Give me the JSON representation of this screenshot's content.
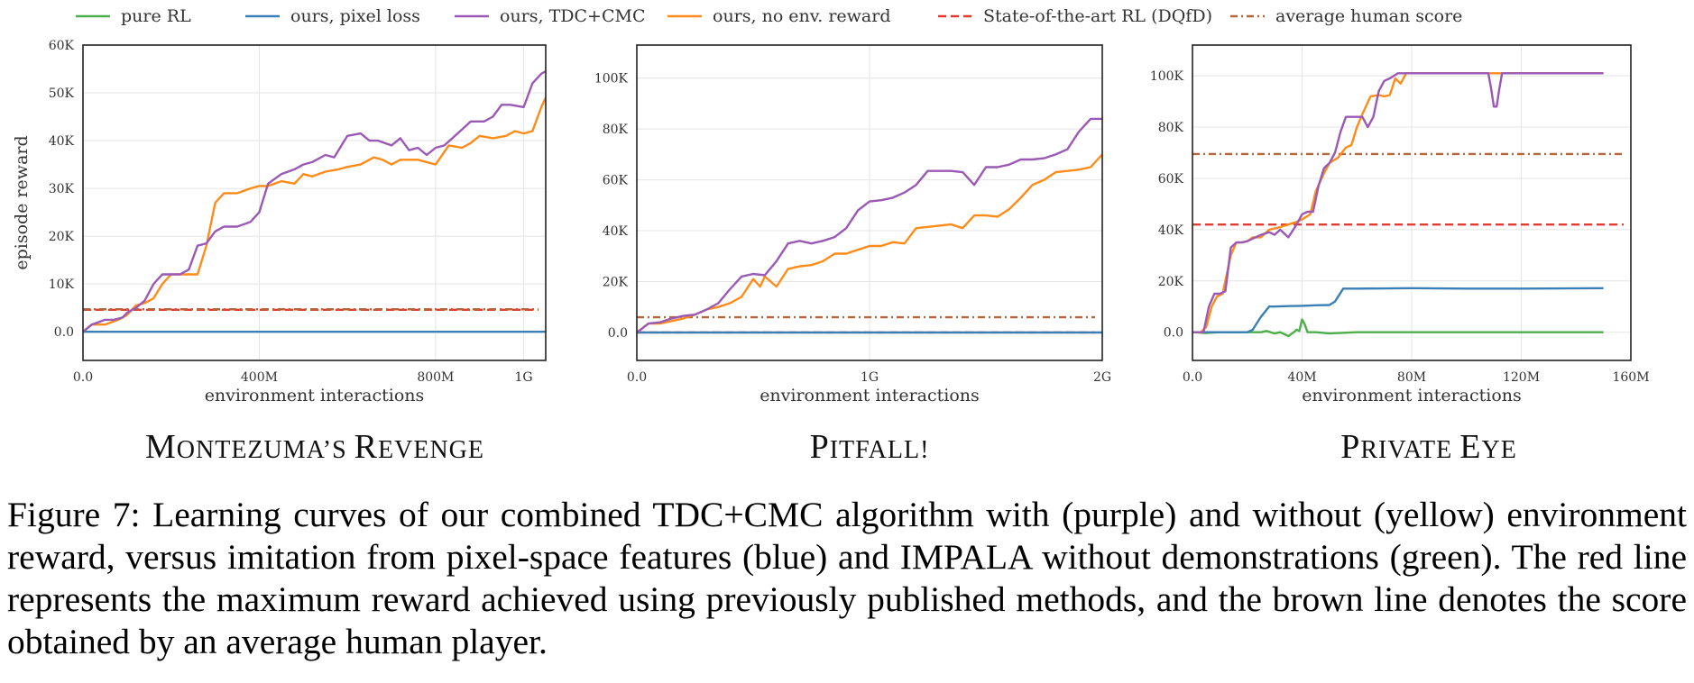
{
  "legend": [
    {
      "label": "pure RL",
      "color": "#4daf4a",
      "dash": "solid"
    },
    {
      "label": "ours, pixel loss",
      "color": "#3a7fb5",
      "dash": "solid"
    },
    {
      "label": "ours, TDC+CMC",
      "color": "#9b59b6",
      "dash": "solid"
    },
    {
      "label": "ours, no env. reward",
      "color": "#ff8c1a",
      "dash": "solid"
    },
    {
      "label": "State-of-the-art RL (DQfD)",
      "color": "#e03c31",
      "dash": "dashed"
    },
    {
      "label": "average human score",
      "color": "#b5653a",
      "dash": "dashdot"
    }
  ],
  "chart_data": [
    {
      "type": "line",
      "title_first": "M",
      "title_rest": "ONTEZUMA’S ",
      "title_first2": "R",
      "title_rest2": "EVENGE",
      "xlabel": "environment interactions",
      "ylabel": "episode reward",
      "xlim": [
        0,
        1.05
      ],
      "ylim": [
        -6000,
        60000
      ],
      "xticks": [
        {
          "v": 0,
          "label": "0.0"
        },
        {
          "v": 0.4,
          "label": "400M"
        },
        {
          "v": 0.8,
          "label": "800M"
        },
        {
          "v": 1.0,
          "label": "1G"
        }
      ],
      "yticks": [
        {
          "v": 0,
          "label": "0.0"
        },
        {
          "v": 10000,
          "label": "10K"
        },
        {
          "v": 20000,
          "label": "20K"
        },
        {
          "v": 30000,
          "label": "30K"
        },
        {
          "v": 40000,
          "label": "40K"
        },
        {
          "v": 50000,
          "label": "50K"
        },
        {
          "v": 60000,
          "label": "60K"
        }
      ],
      "hlines": [
        {
          "name": "State-of-the-art RL (DQfD)",
          "y": 4600,
          "color": "#e03c31",
          "dash": "dashed"
        },
        {
          "name": "average human score",
          "y": 4700,
          "color": "#b5653a",
          "dash": "dashdot"
        }
      ],
      "series": [
        {
          "name": "ours, pixel loss",
          "color": "#3a7fb5",
          "x": [
            0,
            1.05
          ],
          "y": [
            0,
            0
          ]
        },
        {
          "name": "ours, no env. reward",
          "color": "#ff8c1a",
          "x": [
            0,
            0.02,
            0.05,
            0.08,
            0.1,
            0.12,
            0.14,
            0.16,
            0.18,
            0.2,
            0.22,
            0.24,
            0.26,
            0.28,
            0.3,
            0.32,
            0.35,
            0.38,
            0.4,
            0.42,
            0.45,
            0.48,
            0.5,
            0.52,
            0.55,
            0.58,
            0.6,
            0.63,
            0.66,
            0.68,
            0.7,
            0.72,
            0.74,
            0.76,
            0.8,
            0.83,
            0.86,
            0.88,
            0.9,
            0.93,
            0.96,
            0.98,
            1.0,
            1.02,
            1.04,
            1.05
          ],
          "y": [
            0,
            1500,
            1500,
            2500,
            3500,
            5500,
            6000,
            7000,
            10000,
            12000,
            12000,
            12000,
            12000,
            18000,
            27000,
            29000,
            29000,
            30000,
            30500,
            30500,
            31500,
            31000,
            33000,
            32500,
            33500,
            34000,
            34500,
            35000,
            36500,
            36000,
            35000,
            36000,
            36000,
            36000,
            35000,
            39000,
            38500,
            39500,
            41000,
            40500,
            41000,
            42000,
            41500,
            42000,
            47000,
            49000
          ]
        },
        {
          "name": "ours, TDC+CMC",
          "color": "#9b59b6",
          "x": [
            0,
            0.02,
            0.05,
            0.07,
            0.09,
            0.1,
            0.12,
            0.14,
            0.16,
            0.18,
            0.2,
            0.22,
            0.24,
            0.26,
            0.28,
            0.3,
            0.32,
            0.35,
            0.38,
            0.4,
            0.42,
            0.45,
            0.48,
            0.5,
            0.52,
            0.55,
            0.57,
            0.6,
            0.63,
            0.65,
            0.67,
            0.7,
            0.72,
            0.74,
            0.76,
            0.78,
            0.8,
            0.82,
            0.85,
            0.88,
            0.91,
            0.93,
            0.95,
            0.97,
            1.0,
            1.02,
            1.04,
            1.05
          ],
          "y": [
            0,
            1500,
            2500,
            2500,
            3000,
            4000,
            5000,
            6500,
            10000,
            12000,
            12000,
            12000,
            13000,
            18000,
            18500,
            21000,
            22000,
            22000,
            23000,
            25000,
            31000,
            33000,
            34000,
            35000,
            35500,
            37000,
            36500,
            41000,
            41500,
            40000,
            40000,
            39000,
            40500,
            38000,
            38500,
            37000,
            38500,
            39000,
            41500,
            44000,
            44000,
            45000,
            47500,
            47500,
            47000,
            52000,
            54000,
            54500
          ]
        }
      ]
    },
    {
      "type": "line",
      "title_first": "P",
      "title_rest": "ITFALL!",
      "title_first2": "",
      "title_rest2": "",
      "xlabel": "environment interactions",
      "ylabel": "",
      "xlim": [
        0,
        2.0
      ],
      "ylim": [
        -11000,
        113000
      ],
      "xticks": [
        {
          "v": 0,
          "label": "0.0"
        },
        {
          "v": 1.0,
          "label": "1G"
        },
        {
          "v": 2.0,
          "label": "2G"
        }
      ],
      "yticks": [
        {
          "v": 0,
          "label": "0.0"
        },
        {
          "v": 20000,
          "label": "20K"
        },
        {
          "v": 40000,
          "label": "40K"
        },
        {
          "v": 60000,
          "label": "60K"
        },
        {
          "v": 80000,
          "label": "80K"
        },
        {
          "v": 100000,
          "label": "100K"
        }
      ],
      "hlines": [
        {
          "name": "State-of-the-art RL (DQfD)",
          "y": 0,
          "color": "#e03c31",
          "dash": "dashed"
        },
        {
          "name": "average human score",
          "y": 6000,
          "color": "#b5653a",
          "dash": "dashdot"
        }
      ],
      "series": [
        {
          "name": "ours, pixel loss",
          "color": "#3a7fb5",
          "x": [
            0,
            2.0
          ],
          "y": [
            0,
            0
          ]
        },
        {
          "name": "ours, no env. reward",
          "color": "#ff8c1a",
          "x": [
            0,
            0.05,
            0.1,
            0.15,
            0.2,
            0.25,
            0.3,
            0.35,
            0.4,
            0.45,
            0.5,
            0.53,
            0.55,
            0.6,
            0.65,
            0.7,
            0.75,
            0.8,
            0.85,
            0.9,
            0.95,
            1.0,
            1.05,
            1.1,
            1.15,
            1.2,
            1.25,
            1.3,
            1.35,
            1.4,
            1.45,
            1.5,
            1.55,
            1.6,
            1.65,
            1.7,
            1.75,
            1.8,
            1.85,
            1.9,
            1.95,
            1.98,
            2.0
          ],
          "y": [
            0,
            3500,
            3500,
            4500,
            5500,
            7000,
            9000,
            10000,
            11500,
            14000,
            21000,
            18000,
            22000,
            18000,
            25000,
            26000,
            26500,
            28000,
            31000,
            31000,
            32500,
            34000,
            34000,
            35500,
            35000,
            41000,
            41500,
            42000,
            42500,
            41000,
            46000,
            46000,
            45500,
            48500,
            53000,
            58000,
            60000,
            63000,
            63500,
            64000,
            65000,
            68000,
            70000
          ]
        },
        {
          "name": "ours, TDC+CMC",
          "color": "#9b59b6",
          "x": [
            0,
            0.05,
            0.1,
            0.15,
            0.2,
            0.25,
            0.3,
            0.35,
            0.4,
            0.45,
            0.5,
            0.55,
            0.6,
            0.65,
            0.7,
            0.75,
            0.8,
            0.85,
            0.9,
            0.95,
            1.0,
            1.05,
            1.1,
            1.15,
            1.2,
            1.25,
            1.3,
            1.35,
            1.4,
            1.45,
            1.5,
            1.55,
            1.6,
            1.65,
            1.7,
            1.75,
            1.8,
            1.85,
            1.9,
            1.95,
            2.0
          ],
          "y": [
            0,
            3500,
            4000,
            5500,
            6500,
            7000,
            9000,
            11500,
            17000,
            22000,
            23000,
            22500,
            28000,
            35000,
            36000,
            35000,
            36000,
            37500,
            41000,
            48000,
            51500,
            52000,
            53000,
            55000,
            58000,
            63500,
            63500,
            63500,
            63000,
            58000,
            65000,
            65000,
            66000,
            68000,
            68000,
            68500,
            70000,
            72000,
            79000,
            84000,
            84000
          ]
        }
      ]
    },
    {
      "type": "line",
      "title_first": "P",
      "title_rest": "RIVATE ",
      "title_first2": "E",
      "title_rest2": "YE",
      "xlabel": "environment interactions",
      "ylabel": "",
      "xlim": [
        0,
        160
      ],
      "ylim": [
        -11000,
        112000
      ],
      "xticks": [
        {
          "v": 0,
          "label": "0.0"
        },
        {
          "v": 40,
          "label": "40M"
        },
        {
          "v": 80,
          "label": "80M"
        },
        {
          "v": 120,
          "label": "120M"
        },
        {
          "v": 160,
          "label": "160M"
        }
      ],
      "yticks": [
        {
          "v": 0,
          "label": "0.0"
        },
        {
          "v": 20000,
          "label": "20K"
        },
        {
          "v": 40000,
          "label": "40K"
        },
        {
          "v": 60000,
          "label": "60K"
        },
        {
          "v": 80000,
          "label": "80K"
        },
        {
          "v": 100000,
          "label": "100K"
        }
      ],
      "hlines": [
        {
          "name": "State-of-the-art RL (DQfD)",
          "y": 42000,
          "color": "#e03c31",
          "dash": "dashed"
        },
        {
          "name": "average human score",
          "y": 69500,
          "color": "#b5653a",
          "dash": "dashdot"
        }
      ],
      "series": [
        {
          "name": "pure RL",
          "color": "#4daf4a",
          "x": [
            0,
            5,
            10,
            15,
            20,
            25,
            27,
            30,
            32,
            35,
            37,
            38,
            39,
            40,
            41,
            42,
            45,
            50,
            60,
            80,
            100,
            120,
            150
          ],
          "y": [
            0,
            -300,
            0,
            0,
            0,
            0,
            500,
            -500,
            0,
            -1500,
            0,
            1000,
            500,
            5000,
            3000,
            0,
            0,
            -500,
            0,
            0,
            0,
            0,
            0
          ]
        },
        {
          "name": "ours, pixel loss",
          "color": "#3a7fb5",
          "x": [
            0,
            20,
            22,
            25,
            28,
            30,
            35,
            40,
            45,
            50,
            52,
            55,
            60,
            80,
            100,
            120,
            150
          ],
          "y": [
            0,
            0,
            1000,
            6000,
            10000,
            10000,
            10200,
            10300,
            10500,
            10600,
            12000,
            17000,
            17000,
            17200,
            17000,
            17000,
            17200
          ]
        },
        {
          "name": "ours, no env. reward",
          "color": "#ff8c1a",
          "x": [
            0,
            3,
            5,
            7,
            9,
            11,
            14,
            16,
            18,
            20,
            22,
            25,
            28,
            30,
            32,
            35,
            38,
            40,
            43,
            45,
            48,
            50,
            53,
            56,
            58,
            60,
            62,
            65,
            68,
            70,
            72,
            74,
            76,
            78,
            80,
            100,
            120,
            150
          ],
          "y": [
            0,
            0,
            2000,
            10000,
            14000,
            15000,
            30000,
            35000,
            35000,
            35500,
            37000,
            37000,
            40000,
            40500,
            41000,
            42000,
            43000,
            44000,
            46000,
            55000,
            62000,
            66000,
            68000,
            72000,
            73000,
            80000,
            85000,
            92000,
            92500,
            92000,
            92500,
            99000,
            97000,
            101000,
            101000,
            101000,
            101000,
            101000
          ]
        },
        {
          "name": "ours, TDC+CMC",
          "color": "#9b59b6",
          "x": [
            0,
            2,
            4,
            6,
            8,
            10,
            12,
            14,
            16,
            18,
            20,
            25,
            28,
            30,
            32,
            35,
            38,
            40,
            42,
            44,
            46,
            48,
            50,
            52,
            54,
            56,
            58,
            60,
            62,
            64,
            66,
            68,
            70,
            72,
            75,
            80,
            100,
            108,
            109,
            110,
            111,
            112,
            113,
            120,
            150
          ],
          "y": [
            0,
            0,
            0,
            10000,
            15000,
            15000,
            16000,
            33000,
            35000,
            35000,
            35500,
            38000,
            39000,
            38000,
            40000,
            37000,
            42000,
            46000,
            47000,
            47000,
            57000,
            64000,
            66000,
            70000,
            78000,
            84000,
            84000,
            84000,
            84000,
            80000,
            84000,
            94000,
            98000,
            99000,
            101000,
            101000,
            101000,
            101000,
            95000,
            88000,
            88000,
            95000,
            101000,
            101000,
            101000
          ]
        }
      ]
    }
  ],
  "caption": "Figure 7: Learning curves of our combined TDC+CMC algorithm with (purple) and without (yellow) environment reward, versus imitation from pixel-space features (blue) and IMPALA without demonstrations (green). The red line represents the maximum reward achieved using previously published methods, and the brown line denotes the score obtained by an average human player."
}
